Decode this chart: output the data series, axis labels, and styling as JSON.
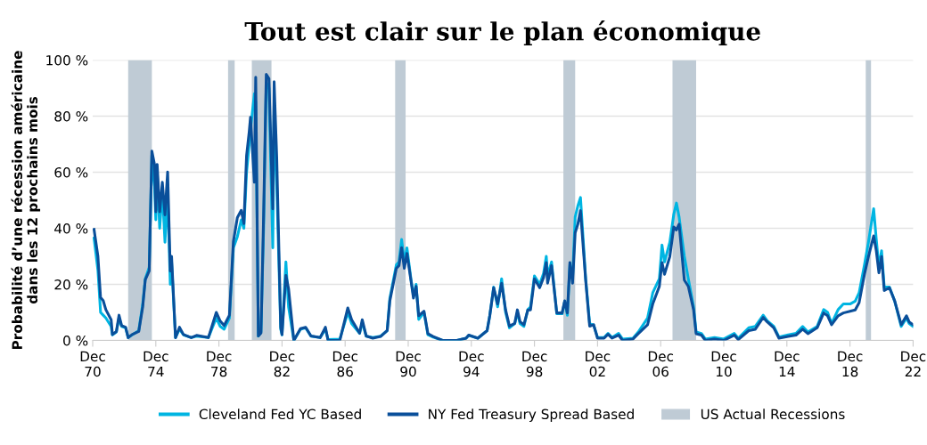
{
  "chart_data": {
    "type": "line",
    "title": "Tout est clair sur le plan économique",
    "ylabel": "Probabilité d’une récession américaine\ndans les 12 prochains mois",
    "x": [
      "1971-01",
      "1971-04",
      "1971-06",
      "1971-08",
      "1971-10",
      "1972-02",
      "1972-03",
      "1972-06",
      "1972-08",
      "1972-10",
      "1973-01",
      "1973-03",
      "1973-06",
      "1973-11",
      "1974-02",
      "1974-04",
      "1974-07",
      "1974-09",
      "1974-11",
      "1974-12",
      "1975-01",
      "1975-03",
      "1975-05",
      "1975-07",
      "1975-09",
      "1975-11",
      "1975-12",
      "1976-03",
      "1976-06",
      "1976-09",
      "1977-03",
      "1977-07",
      "1978-04",
      "1978-10",
      "1979-01",
      "1979-04",
      "1979-08",
      "1979-11",
      "1980-02",
      "1980-05",
      "1980-07",
      "1980-09",
      "1980-11",
      "1980-12",
      "1981-03",
      "1981-04",
      "1981-06",
      "1981-08",
      "1981-10",
      "1981-12",
      "1982-02",
      "1982-05",
      "1982-06",
      "1982-08",
      "1982-11",
      "1982-12",
      "1983-03",
      "1983-05",
      "1983-09",
      "1984-02",
      "1984-06",
      "1984-10",
      "1985-05",
      "1985-09",
      "1985-11",
      "1986-08",
      "1987-02",
      "1987-05",
      "1987-11",
      "1988-01",
      "1988-04",
      "1988-09",
      "1989-03",
      "1989-08",
      "1989-10",
      "1990-03",
      "1990-05",
      "1990-07",
      "1990-09",
      "1990-11",
      "1991-02",
      "1991-04",
      "1991-06",
      "1991-08",
      "1991-12",
      "1992-03",
      "1992-07",
      "1993-02",
      "1994-01",
      "1994-08",
      "1994-10",
      "1995-05",
      "1995-12",
      "1996-02",
      "1996-05",
      "1996-08",
      "1996-11",
      "1997-02",
      "1997-05",
      "1997-09",
      "1997-11",
      "1998-01",
      "1998-04",
      "1998-07",
      "1998-09",
      "1998-12",
      "1999-04",
      "1999-07",
      "1999-09",
      "1999-10",
      "2000-01",
      "2000-05",
      "2000-09",
      "2000-11",
      "2001-01",
      "2001-03",
      "2001-05",
      "2001-07",
      "2001-09",
      "2001-11",
      "2002-03",
      "2002-06",
      "2002-09",
      "2002-12",
      "2003-05",
      "2003-08",
      "2003-11",
      "2004-04",
      "2004-07",
      "2005-03",
      "2005-07",
      "2006-02",
      "2006-06",
      "2006-11",
      "2007-01",
      "2007-03",
      "2007-07",
      "2007-10",
      "2007-12",
      "2008-02",
      "2008-06",
      "2008-09",
      "2009-01",
      "2009-03",
      "2009-07",
      "2009-10",
      "2010-05",
      "2010-12",
      "2011-08",
      "2011-11",
      "2012-07",
      "2012-12",
      "2013-06",
      "2013-09",
      "2014-02",
      "2014-06",
      "2015-01",
      "2015-07",
      "2015-12",
      "2016-04",
      "2016-11",
      "2017-04",
      "2017-07",
      "2017-10",
      "2018-03",
      "2018-07",
      "2018-12",
      "2019-04",
      "2019-07",
      "2019-11",
      "2020-02",
      "2020-06",
      "2020-08",
      "2020-10",
      "2020-12",
      "2021-02",
      "2021-06",
      "2021-10",
      "2022-03",
      "2022-07",
      "2022-09",
      "2022-12"
    ],
    "series": [
      {
        "name": "Cleveland Fed YC Based",
        "color": "#00b5e2",
        "values": [
          36.5,
          25,
          10,
          9,
          8,
          5,
          2,
          3,
          8,
          5,
          4.5,
          1,
          2,
          3.5,
          13,
          22,
          26,
          66,
          55,
          43,
          60,
          40,
          54,
          35,
          52,
          20,
          28,
          1,
          4,
          2,
          1,
          1.5,
          1,
          8,
          5,
          4,
          8,
          33,
          37,
          43,
          40,
          60,
          70,
          75,
          88,
          85,
          1.5,
          3,
          40,
          92,
          90,
          33,
          85,
          55,
          4,
          2,
          28,
          12,
          0,
          4,
          4.5,
          1.5,
          1,
          4,
          0.3,
          0.5,
          10,
          6,
          2.5,
          6.5,
          1.5,
          1,
          1.5,
          3.5,
          15,
          27,
          28,
          36,
          28,
          33,
          22,
          16,
          20,
          7.5,
          10,
          2,
          1.2,
          0,
          0,
          0.8,
          1.8,
          0.8,
          3.5,
          9,
          19,
          12,
          22,
          10,
          4.5,
          6,
          10,
          6,
          5,
          11,
          12,
          23,
          20,
          24,
          30,
          23,
          28,
          9.5,
          9.5,
          14,
          9,
          27,
          22,
          44,
          48,
          51,
          22,
          6,
          5.5,
          1,
          1,
          2.5,
          1,
          2.5,
          0.5,
          0.8,
          3,
          8,
          17,
          22,
          34,
          28,
          35,
          45,
          49,
          44,
          30,
          22,
          12,
          3,
          2.5,
          0.5,
          1,
          0.5,
          2.5,
          0.8,
          4.5,
          5,
          9,
          7,
          5,
          1.2,
          2,
          2.5,
          5,
          3,
          5,
          11,
          10,
          6,
          11,
          13,
          13,
          14,
          17,
          27,
          35,
          47,
          36,
          26,
          32,
          19,
          19,
          14,
          5,
          8,
          6,
          5
        ]
      },
      {
        "name": "NY Fed Treasury Spread Based",
        "color": "#0a4f9a",
        "values": [
          39.6,
          30,
          15.3,
          14.2,
          11,
          7.4,
          2.1,
          3.2,
          9,
          5.3,
          4.7,
          1,
          2.1,
          3.2,
          12,
          21.6,
          24.8,
          67.5,
          62.8,
          45.9,
          62.8,
          45.9,
          56.4,
          44.8,
          60.1,
          24.8,
          30,
          1,
          4.7,
          2.1,
          1,
          1.8,
          1,
          10,
          6.9,
          5.3,
          9,
          35.3,
          43.8,
          46.4,
          41.7,
          65.9,
          74.4,
          79.6,
          56.4,
          93.9,
          1.6,
          2.6,
          44.8,
          94.9,
          93.4,
          46.9,
          92.3,
          64.9,
          4.7,
          2.1,
          23.2,
          18.5,
          0,
          4.2,
          4.7,
          1.6,
          1,
          4.7,
          0,
          0,
          11.6,
          7.4,
          2.6,
          7.4,
          1.6,
          0.8,
          1.4,
          3.5,
          14.1,
          25.7,
          26.7,
          33.1,
          25.7,
          31,
          21.5,
          15.1,
          19.3,
          8.8,
          10.4,
          2.4,
          1.4,
          0,
          0,
          0.8,
          1.9,
          0.8,
          3.5,
          8.8,
          18.8,
          13,
          20.4,
          10.9,
          5.1,
          6.1,
          10.9,
          6.7,
          5.6,
          10.9,
          10.9,
          22,
          18.8,
          22.5,
          27.8,
          20.4,
          26.7,
          9.8,
          9.8,
          14.1,
          9.8,
          27.8,
          20.4,
          38.4,
          41.5,
          46.3,
          21.5,
          5.1,
          5.6,
          0.8,
          0.8,
          2.2,
          0.8,
          1.9,
          0,
          0.5,
          2.4,
          5.6,
          13,
          19.3,
          27.8,
          23.6,
          29.9,
          40.5,
          39.4,
          41.5,
          21.5,
          19.3,
          10.9,
          2.4,
          1.9,
          0,
          0.5,
          0,
          1.9,
          0.3,
          3.5,
          4,
          8.2,
          6.6,
          4.5,
          0.8,
          1.4,
          1.9,
          4,
          2.4,
          4.5,
          9.8,
          8.8,
          5.6,
          8.8,
          9.8,
          10.4,
          10.9,
          13.5,
          23.6,
          29.9,
          37.3,
          32,
          24.1,
          29.9,
          17.8,
          18.8,
          14.1,
          5.6,
          8.8,
          6.6,
          5.6
        ]
      }
    ],
    "bands": [
      {
        "axis": "x",
        "from": "1973-03",
        "to": "1974-09",
        "label": "US Actual Recessions",
        "color": "#bfcbd5"
      },
      {
        "axis": "x",
        "from": "1979-07",
        "to": "1979-12",
        "color": "#bfcbd5"
      },
      {
        "axis": "x",
        "from": "1981-01",
        "to": "1982-04",
        "color": "#bfcbd5"
      },
      {
        "axis": "x",
        "from": "1990-02",
        "to": "1990-10",
        "color": "#bfcbd5"
      },
      {
        "axis": "x",
        "from": "2000-10",
        "to": "2001-07",
        "color": "#bfcbd5"
      },
      {
        "axis": "x",
        "from": "2007-09",
        "to": "2009-03",
        "color": "#bfcbd5"
      },
      {
        "axis": "x",
        "from": "2019-12",
        "to": "2020-04",
        "color": "#bfcbd5"
      }
    ],
    "xlim": [
      "1970-12",
      "2022-12"
    ],
    "xticks": [
      {
        "value": "1970-12",
        "label": "Dec\n70"
      },
      {
        "value": "1974-12",
        "label": "Dec\n74"
      },
      {
        "value": "1978-12",
        "label": "Dec\n78"
      },
      {
        "value": "1982-12",
        "label": "Dec\n82"
      },
      {
        "value": "1986-12",
        "label": "Dec\n86"
      },
      {
        "value": "1990-12",
        "label": "Dec\n90"
      },
      {
        "value": "1994-12",
        "label": "Dec\n94"
      },
      {
        "value": "1998-12",
        "label": "Dec\n98"
      },
      {
        "value": "2002-12",
        "label": "Dec\n02"
      },
      {
        "value": "2006-12",
        "label": "Dec\n06"
      },
      {
        "value": "2010-12",
        "label": "Dec\n10"
      },
      {
        "value": "2014-12",
        "label": "Dec\n14"
      },
      {
        "value": "2018-12",
        "label": "Dec\n18"
      },
      {
        "value": "2022-12",
        "label": "Dec\n22"
      }
    ],
    "ylim": [
      0,
      100
    ],
    "yticks": [
      {
        "value": 0,
        "label": "0 %"
      },
      {
        "value": 20,
        "label": "20 %"
      },
      {
        "value": 40,
        "label": "40 %"
      },
      {
        "value": 60,
        "label": "60 %"
      },
      {
        "value": 80,
        "label": "80 %"
      },
      {
        "value": 100,
        "label": "100 %"
      }
    ],
    "grid": "y",
    "legend": "bottom",
    "marker": "none",
    "line_style": "solid"
  }
}
